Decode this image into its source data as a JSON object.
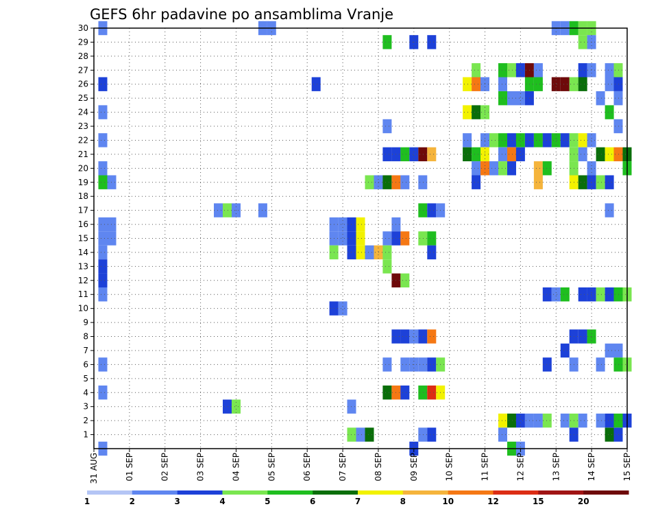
{
  "chart_data": {
    "type": "heatmap",
    "title": "GEFS 6hr padavine po ansamblima Vranje",
    "xlabel": "",
    "ylabel": "",
    "y_ticks": [
      "1",
      "2",
      "3",
      "4",
      "5",
      "6",
      "7",
      "8",
      "9",
      "10",
      "11",
      "12",
      "13",
      "14",
      "15",
      "16",
      "17",
      "18",
      "19",
      "20",
      "21",
      "22",
      "23",
      "24",
      "25",
      "26",
      "27",
      "28",
      "29",
      "30"
    ],
    "x_ticks": [
      {
        "day": 0,
        "label": "31 AUG"
      },
      {
        "day": 1,
        "label": "01 SEP"
      },
      {
        "day": 2,
        "label": "02 SEP"
      },
      {
        "day": 3,
        "label": "03 SEP"
      },
      {
        "day": 4,
        "label": "04 SEP"
      },
      {
        "day": 5,
        "label": "05 SEP"
      },
      {
        "day": 6,
        "label": "06 SEP"
      },
      {
        "day": 7,
        "label": "07 SEP"
      },
      {
        "day": 8,
        "label": "08 SEP"
      },
      {
        "day": 9,
        "label": "09 SEP"
      },
      {
        "day": 10,
        "label": "10 SEP"
      },
      {
        "day": 11,
        "label": "11 SEP"
      },
      {
        "day": 12,
        "label": "12 SEP"
      },
      {
        "day": 13,
        "label": "13 SEP"
      },
      {
        "day": 14,
        "label": "14 SEP"
      },
      {
        "day": 15,
        "label": "15 SEP"
      }
    ],
    "x_range": [
      0,
      15
    ],
    "y_range": [
      0,
      30
    ],
    "grid": true,
    "colorbar": {
      "labels": [
        "1",
        "2",
        "3",
        "4",
        "5",
        "6",
        "7",
        "8",
        "10",
        "12",
        "15",
        "20"
      ],
      "colors": [
        "#b4c5f5",
        "#5f86f0",
        "#1d41d8",
        "#7ae650",
        "#1fbe1f",
        "#0a6e0a",
        "#f2f200",
        "#f5b43c",
        "#f57814",
        "#dc2d14",
        "#a01414",
        "#6e0a0a"
      ]
    },
    "cells": [
      [
        30,
        0.25,
        1
      ],
      [
        30,
        4.75,
        1
      ],
      [
        30,
        5,
        1
      ],
      [
        30,
        13,
        1
      ],
      [
        30,
        13.25,
        1
      ],
      [
        30,
        13.75,
        3
      ],
      [
        30,
        13.5,
        4
      ],
      [
        30,
        14,
        3
      ],
      [
        29,
        8.25,
        4
      ],
      [
        29,
        9,
        2
      ],
      [
        29,
        9.5,
        2
      ],
      [
        29,
        13.75,
        3
      ],
      [
        29,
        14,
        1
      ],
      [
        27,
        10.75,
        3
      ],
      [
        27,
        11.5,
        4
      ],
      [
        27,
        11.75,
        3
      ],
      [
        27,
        12,
        2
      ],
      [
        27,
        12.25,
        11
      ],
      [
        27,
        12.5,
        1
      ],
      [
        27,
        13.75,
        2
      ],
      [
        27,
        14,
        1
      ],
      [
        27,
        14.5,
        1
      ],
      [
        27,
        14.75,
        3
      ],
      [
        26,
        0.25,
        2
      ],
      [
        26,
        6.25,
        2
      ],
      [
        26,
        10.5,
        6
      ],
      [
        26,
        10.75,
        8
      ],
      [
        26,
        11,
        1
      ],
      [
        26,
        11.5,
        1
      ],
      [
        26,
        12.25,
        4
      ],
      [
        26,
        12.5,
        4
      ],
      [
        26,
        13,
        11
      ],
      [
        26,
        13.25,
        11
      ],
      [
        26,
        13.5,
        3
      ],
      [
        26,
        13.75,
        5
      ],
      [
        26,
        14.5,
        1
      ],
      [
        26,
        14.75,
        2
      ],
      [
        25,
        11.5,
        4
      ],
      [
        25,
        11.75,
        1
      ],
      [
        25,
        12,
        1
      ],
      [
        25,
        12.25,
        2
      ],
      [
        25,
        14.25,
        1
      ],
      [
        25,
        14.75,
        1
      ],
      [
        24,
        0.25,
        1
      ],
      [
        24,
        10.5,
        6
      ],
      [
        24,
        10.75,
        5
      ],
      [
        24,
        11,
        3
      ],
      [
        24,
        14.5,
        4
      ],
      [
        23,
        8.25,
        1
      ],
      [
        23,
        14.75,
        1
      ],
      [
        22,
        0.25,
        1
      ],
      [
        22,
        10.5,
        1
      ],
      [
        22,
        11,
        1
      ],
      [
        22,
        11.25,
        3
      ],
      [
        22,
        11.5,
        4
      ],
      [
        22,
        11.75,
        2
      ],
      [
        22,
        12,
        4
      ],
      [
        22,
        12.25,
        2
      ],
      [
        22,
        12.5,
        4
      ],
      [
        22,
        12.75,
        2
      ],
      [
        22,
        13,
        4
      ],
      [
        22,
        13.25,
        2
      ],
      [
        22,
        13.5,
        3
      ],
      [
        22,
        13.75,
        6
      ],
      [
        22,
        14,
        1
      ],
      [
        21,
        8.25,
        2
      ],
      [
        21,
        8.5,
        2
      ],
      [
        21,
        8.75,
        4
      ],
      [
        21,
        9,
        2
      ],
      [
        21,
        9.25,
        11
      ],
      [
        21,
        9.5,
        7
      ],
      [
        21,
        10.5,
        5
      ],
      [
        21,
        10.75,
        4
      ],
      [
        21,
        11,
        6
      ],
      [
        21,
        11.5,
        1
      ],
      [
        21,
        11.75,
        8
      ],
      [
        21,
        12,
        2
      ],
      [
        21,
        13.5,
        3
      ],
      [
        21,
        13.75,
        1
      ],
      [
        21,
        14.25,
        5
      ],
      [
        21,
        14.5,
        6
      ],
      [
        21,
        14.75,
        8
      ],
      [
        21,
        15,
        5
      ],
      [
        20,
        0.25,
        1
      ],
      [
        20,
        10.75,
        1
      ],
      [
        20,
        11,
        8
      ],
      [
        20,
        11.25,
        1
      ],
      [
        20,
        11.5,
        3
      ],
      [
        20,
        11.75,
        2
      ],
      [
        20,
        12.5,
        7
      ],
      [
        20,
        12.75,
        4
      ],
      [
        20,
        13.5,
        3
      ],
      [
        20,
        14,
        1
      ],
      [
        20,
        15,
        4
      ],
      [
        19,
        0.25,
        4
      ],
      [
        19,
        0.5,
        1
      ],
      [
        19,
        7.75,
        3
      ],
      [
        19,
        8,
        1
      ],
      [
        19,
        8.25,
        5
      ],
      [
        19,
        8.5,
        8
      ],
      [
        19,
        8.75,
        1
      ],
      [
        19,
        9.25,
        1
      ],
      [
        19,
        10.75,
        2
      ],
      [
        19,
        12.5,
        7
      ],
      [
        19,
        13.5,
        6
      ],
      [
        19,
        13.75,
        5
      ],
      [
        19,
        14,
        2
      ],
      [
        19,
        14.25,
        3
      ],
      [
        19,
        14.5,
        2
      ],
      [
        17,
        3.5,
        1
      ],
      [
        17,
        3.75,
        3
      ],
      [
        17,
        4,
        1
      ],
      [
        17,
        4.75,
        1
      ],
      [
        17,
        9.25,
        4
      ],
      [
        17,
        9.5,
        2
      ],
      [
        17,
        9.75,
        1
      ],
      [
        17,
        14.5,
        1
      ],
      [
        16,
        0.25,
        1
      ],
      [
        16,
        0.5,
        1
      ],
      [
        16,
        6.75,
        1
      ],
      [
        16,
        7,
        1
      ],
      [
        16,
        7.25,
        2
      ],
      [
        16,
        7.5,
        6
      ],
      [
        16,
        8.5,
        1
      ],
      [
        15,
        0.25,
        1
      ],
      [
        15,
        0.5,
        1
      ],
      [
        15,
        6.75,
        1
      ],
      [
        15,
        7,
        1
      ],
      [
        15,
        7.25,
        2
      ],
      [
        15,
        7.5,
        6
      ],
      [
        15,
        8.25,
        1
      ],
      [
        15,
        8.5,
        2
      ],
      [
        15,
        8.75,
        8
      ],
      [
        15,
        9.25,
        3
      ],
      [
        15,
        9.5,
        4
      ],
      [
        14,
        0.25,
        1
      ],
      [
        14,
        6.75,
        3
      ],
      [
        14,
        7.25,
        2
      ],
      [
        14,
        7.5,
        6
      ],
      [
        14,
        7.75,
        1
      ],
      [
        14,
        8,
        7
      ],
      [
        14,
        8.25,
        3
      ],
      [
        14,
        9.5,
        2
      ],
      [
        13,
        0.25,
        1
      ],
      [
        13,
        0.25,
        2
      ],
      [
        13,
        8.25,
        3
      ],
      [
        12,
        0.25,
        2
      ],
      [
        12,
        8.5,
        11
      ],
      [
        12,
        8.75,
        3
      ],
      [
        11,
        0.25,
        1
      ],
      [
        11,
        12.75,
        2
      ],
      [
        11,
        13,
        1
      ],
      [
        11,
        13.25,
        4
      ],
      [
        11,
        13.75,
        2
      ],
      [
        11,
        14,
        2
      ],
      [
        11,
        14.25,
        3
      ],
      [
        11,
        14.5,
        2
      ],
      [
        11,
        14.75,
        4
      ],
      [
        11,
        15,
        3
      ],
      [
        10,
        6.75,
        2
      ],
      [
        10,
        7,
        1
      ],
      [
        8,
        8.5,
        2
      ],
      [
        8,
        8.75,
        2
      ],
      [
        8,
        9,
        1
      ],
      [
        8,
        9.25,
        2
      ],
      [
        8,
        9.5,
        8
      ],
      [
        8,
        13.5,
        2
      ],
      [
        8,
        13.75,
        2
      ],
      [
        8,
        14,
        4
      ],
      [
        7,
        13.25,
        2
      ],
      [
        7,
        14.5,
        1
      ],
      [
        7,
        14.75,
        1
      ],
      [
        6,
        0.25,
        1
      ],
      [
        6,
        8.25,
        1
      ],
      [
        6,
        8.75,
        1
      ],
      [
        6,
        9,
        1
      ],
      [
        6,
        9.25,
        1
      ],
      [
        6,
        9.5,
        2
      ],
      [
        6,
        9.75,
        3
      ],
      [
        6,
        12.75,
        2
      ],
      [
        6,
        13.5,
        1
      ],
      [
        6,
        14.25,
        1
      ],
      [
        6,
        14.75,
        4
      ],
      [
        6,
        15,
        3
      ],
      [
        4,
        0.25,
        1
      ],
      [
        4,
        8.25,
        5
      ],
      [
        4,
        8.5,
        8
      ],
      [
        4,
        8.75,
        2
      ],
      [
        4,
        9.25,
        4
      ],
      [
        4,
        9.5,
        9
      ],
      [
        4,
        9.75,
        6
      ],
      [
        3,
        3.75,
        2
      ],
      [
        3,
        4,
        3
      ],
      [
        3,
        7.25,
        1
      ],
      [
        2,
        11.5,
        6
      ],
      [
        2,
        11.75,
        5
      ],
      [
        2,
        12,
        2
      ],
      [
        2,
        12.25,
        1
      ],
      [
        2,
        12.5,
        1
      ],
      [
        2,
        12.75,
        3
      ],
      [
        2,
        13.25,
        1
      ],
      [
        2,
        13.5,
        3
      ],
      [
        2,
        13.75,
        1
      ],
      [
        2,
        14.25,
        1
      ],
      [
        2,
        14.5,
        2
      ],
      [
        2,
        14.75,
        4
      ],
      [
        2,
        15,
        2
      ],
      [
        1,
        7.25,
        3
      ],
      [
        1,
        7.5,
        1
      ],
      [
        1,
        7.75,
        5
      ],
      [
        1,
        9.25,
        1
      ],
      [
        1,
        9.5,
        2
      ],
      [
        1,
        11.5,
        1
      ],
      [
        1,
        13.5,
        2
      ],
      [
        1,
        14.5,
        5
      ],
      [
        1,
        14.75,
        2
      ],
      [
        0,
        0.25,
        1
      ],
      [
        0,
        9,
        2
      ],
      [
        0,
        11.75,
        4
      ],
      [
        0,
        12,
        1
      ]
    ]
  }
}
